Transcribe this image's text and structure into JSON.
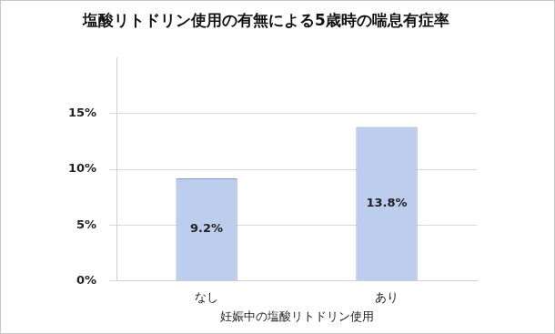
{
  "chart_data": {
    "type": "bar",
    "title": "塩酸リトドリン使用の有無による5歳時の喘息有症率",
    "x_label": "妊娠中の塩酸リトドリン使用",
    "categories": [
      "なし",
      "あり"
    ],
    "values": [
      9.2,
      13.8
    ],
    "value_labels": [
      "9.2%",
      "13.8%"
    ],
    "color": "#bccdee",
    "ylim": [
      0,
      20
    ],
    "yticks": [
      {
        "value": 0,
        "label": "0%"
      },
      {
        "value": 5,
        "label": "5%"
      },
      {
        "value": 10,
        "label": "10%"
      },
      {
        "value": 15,
        "label": "15%"
      }
    ],
    "grid": true,
    "data_labels": true
  }
}
